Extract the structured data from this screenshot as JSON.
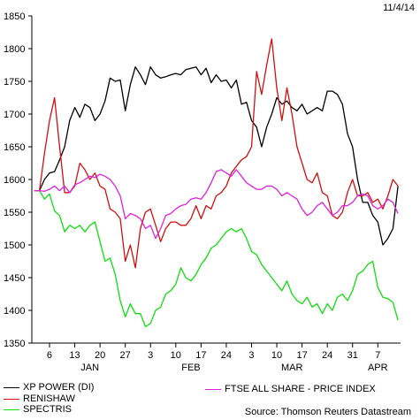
{
  "header": {
    "date": "11/4/14"
  },
  "footer": {
    "source": "Source: Thomson Reuters Datastream"
  },
  "chart_data": {
    "type": "line",
    "title": "",
    "xlabel": "",
    "ylabel": "",
    "ylim": [
      1350,
      1850
    ],
    "yticks": [
      1350,
      1400,
      1450,
      1500,
      1550,
      1600,
      1650,
      1700,
      1750,
      1800,
      1850
    ],
    "x_tick_labels": [
      "6",
      "13",
      "20",
      "27",
      "3",
      "10",
      "17",
      "24",
      "3",
      "10",
      "17",
      "24",
      "31",
      "7"
    ],
    "x_tick_index": [
      3,
      8,
      13,
      18,
      23,
      28,
      33,
      38,
      43,
      48,
      53,
      58,
      63,
      68
    ],
    "month_labels": [
      {
        "label": "JAN",
        "index": 11
      },
      {
        "label": "FEB",
        "index": 31
      },
      {
        "label": "MAR",
        "index": 51
      },
      {
        "label": "APR",
        "index": 68
      }
    ],
    "x_count": 73,
    "series": [
      {
        "name": "XP POWER (DI)",
        "color": "#000000",
        "values": [
          1583,
          1583,
          1600,
          1610,
          1612,
          1630,
          1650,
          1690,
          1710,
          1695,
          1715,
          1710,
          1690,
          1700,
          1720,
          1755,
          1750,
          1752,
          1705,
          1745,
          1772,
          1760,
          1745,
          1772,
          1760,
          1755,
          1757,
          1760,
          1762,
          1760,
          1768,
          1770,
          1772,
          1760,
          1770,
          1748,
          1760,
          1750,
          1752,
          1740,
          1752,
          1715,
          1718,
          1690,
          1680,
          1650,
          1680,
          1700,
          1725,
          1715,
          1720,
          1710,
          1705,
          1715,
          1700,
          1705,
          1710,
          1705,
          1735,
          1735,
          1730,
          1715,
          1670,
          1650,
          1600,
          1565,
          1565,
          1545,
          1535,
          1500,
          1510,
          1525,
          1590
        ]
      },
      {
        "name": "RENISHAW",
        "color": "#d01010",
        "values": [
          1583,
          1583,
          1640,
          1690,
          1725,
          1650,
          1580,
          1580,
          1590,
          1625,
          1615,
          1600,
          1610,
          1590,
          1585,
          1555,
          1550,
          1540,
          1475,
          1500,
          1465,
          1525,
          1550,
          1555,
          1530,
          1505,
          1525,
          1535,
          1535,
          1530,
          1530,
          1540,
          1560,
          1540,
          1560,
          1555,
          1575,
          1580,
          1590,
          1610,
          1620,
          1630,
          1635,
          1650,
          1765,
          1730,
          1775,
          1815,
          1740,
          1690,
          1740,
          1700,
          1650,
          1625,
          1600,
          1595,
          1610,
          1580,
          1575,
          1545,
          1540,
          1550,
          1580,
          1600,
          1575,
          1575,
          1580,
          1565,
          1570,
          1555,
          1575,
          1600,
          1590
        ]
      },
      {
        "name": "SPECTRIS",
        "color": "#10dd10",
        "values": [
          1583,
          1583,
          1570,
          1578,
          1552,
          1545,
          1520,
          1530,
          1525,
          1530,
          1520,
          1530,
          1535,
          1505,
          1475,
          1480,
          1455,
          1415,
          1390,
          1410,
          1395,
          1395,
          1375,
          1380,
          1400,
          1405,
          1425,
          1430,
          1440,
          1465,
          1450,
          1445,
          1455,
          1470,
          1480,
          1495,
          1500,
          1510,
          1520,
          1525,
          1520,
          1525,
          1510,
          1490,
          1485,
          1470,
          1460,
          1450,
          1440,
          1430,
          1445,
          1425,
          1415,
          1410,
          1420,
          1405,
          1410,
          1395,
          1410,
          1400,
          1420,
          1425,
          1415,
          1430,
          1455,
          1460,
          1470,
          1475,
          1435,
          1420,
          1418,
          1412,
          1385
        ]
      },
      {
        "name": "FTSE ALL SHARE - PRICE INDEX",
        "color": "#dd22dd",
        "values": [
          1583,
          1583,
          1582,
          1585,
          1590,
          1583,
          1590,
          1580,
          1592,
          1595,
          1600,
          1605,
          1603,
          1608,
          1605,
          1600,
          1590,
          1575,
          1540,
          1548,
          1545,
          1540,
          1525,
          1530,
          1510,
          1525,
          1545,
          1548,
          1555,
          1560,
          1562,
          1570,
          1572,
          1570,
          1580,
          1595,
          1612,
          1615,
          1610,
          1605,
          1615,
          1605,
          1595,
          1590,
          1585,
          1585,
          1590,
          1590,
          1585,
          1575,
          1580,
          1575,
          1570,
          1555,
          1545,
          1550,
          1560,
          1565,
          1555,
          1545,
          1550,
          1560,
          1560,
          1565,
          1575,
          1578,
          1575,
          1560,
          1555,
          1560,
          1570,
          1565,
          1548
        ]
      }
    ]
  }
}
